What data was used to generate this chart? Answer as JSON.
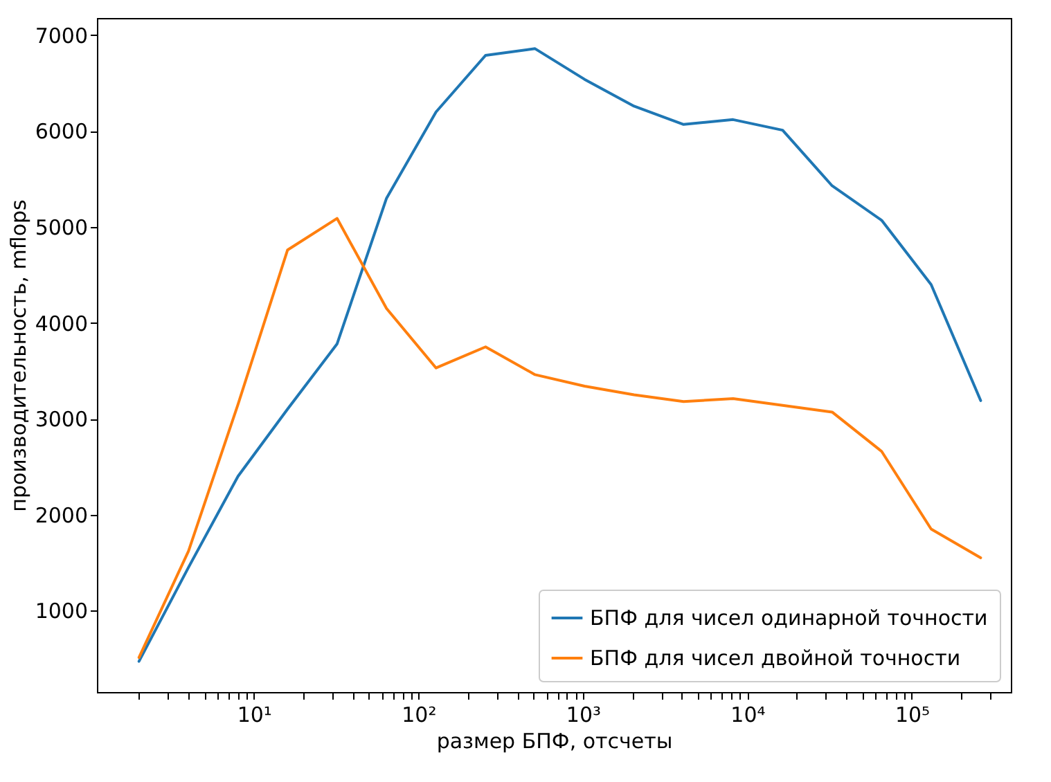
{
  "chart_data": {
    "type": "line",
    "xlabel": "размер БПФ, отсчеты",
    "ylabel": "производительность, mflops",
    "log": "x",
    "grid": false,
    "legend": "bottom right",
    "x": [
      2,
      4,
      8,
      16,
      32,
      64,
      128,
      256,
      512,
      1024,
      2048,
      4096,
      8192,
      16384,
      32768,
      65536,
      131072,
      262144
    ],
    "xlim": [
      1.11,
      400000
    ],
    "xticks": [
      {
        "value": 10,
        "label": "10¹"
      },
      {
        "value": 100,
        "label": "10²"
      },
      {
        "value": 1000,
        "label": "10³"
      },
      {
        "value": 10000,
        "label": "10⁴"
      },
      {
        "value": 100000,
        "label": "10⁵"
      },
      {
        "value": 2,
        "label": null
      },
      {
        "value": 3,
        "label": null
      },
      {
        "value": 4,
        "label": null
      },
      {
        "value": 5,
        "label": null
      },
      {
        "value": 6,
        "label": null
      },
      {
        "value": 7,
        "label": null
      },
      {
        "value": 8,
        "label": null
      },
      {
        "value": 9,
        "label": null
      },
      {
        "value": 20,
        "label": null
      },
      {
        "value": 30,
        "label": null
      },
      {
        "value": 40,
        "label": null
      },
      {
        "value": 50,
        "label": null
      },
      {
        "value": 60,
        "label": null
      },
      {
        "value": 70,
        "label": null
      },
      {
        "value": 80,
        "label": null
      },
      {
        "value": 90,
        "label": null
      },
      {
        "value": 200,
        "label": null
      },
      {
        "value": 300,
        "label": null
      },
      {
        "value": 400,
        "label": null
      },
      {
        "value": 500,
        "label": null
      },
      {
        "value": 600,
        "label": null
      },
      {
        "value": 700,
        "label": null
      },
      {
        "value": 800,
        "label": null
      },
      {
        "value": 900,
        "label": null
      },
      {
        "value": 2000,
        "label": null
      },
      {
        "value": 3000,
        "label": null
      },
      {
        "value": 4000,
        "label": null
      },
      {
        "value": 5000,
        "label": null
      },
      {
        "value": 6000,
        "label": null
      },
      {
        "value": 7000,
        "label": null
      },
      {
        "value": 8000,
        "label": null
      },
      {
        "value": 9000,
        "label": null
      },
      {
        "value": 20000,
        "label": null
      },
      {
        "value": 30000,
        "label": null
      },
      {
        "value": 40000,
        "label": null
      },
      {
        "value": 50000,
        "label": null
      },
      {
        "value": 60000,
        "label": null
      },
      {
        "value": 70000,
        "label": null
      },
      {
        "value": 80000,
        "label": null
      },
      {
        "value": 90000,
        "label": null
      },
      {
        "value": 200000,
        "label": null
      },
      {
        "value": 300000,
        "label": null
      }
    ],
    "ylim": [
      150,
      7180
    ],
    "yticks": [
      1000,
      2000,
      3000,
      4000,
      5000,
      6000,
      7000
    ],
    "series": [
      {
        "name": "БПФ для чисел одинарной точности",
        "color": "#1f77b4",
        "values": [
          470,
          1450,
          2400,
          3100,
          3780,
          5300,
          6200,
          6790,
          6860,
          6540,
          6260,
          6070,
          6120,
          6010,
          5430,
          5070,
          4400,
          3190
        ]
      },
      {
        "name": "БПФ для чисел двойной точности",
        "color": "#ff7f0e",
        "values": [
          510,
          1620,
          3150,
          4760,
          5090,
          4150,
          3530,
          3750,
          3460,
          3340,
          3250,
          3180,
          3210,
          3140,
          3070,
          2660,
          1850,
          1550
        ]
      }
    ]
  }
}
